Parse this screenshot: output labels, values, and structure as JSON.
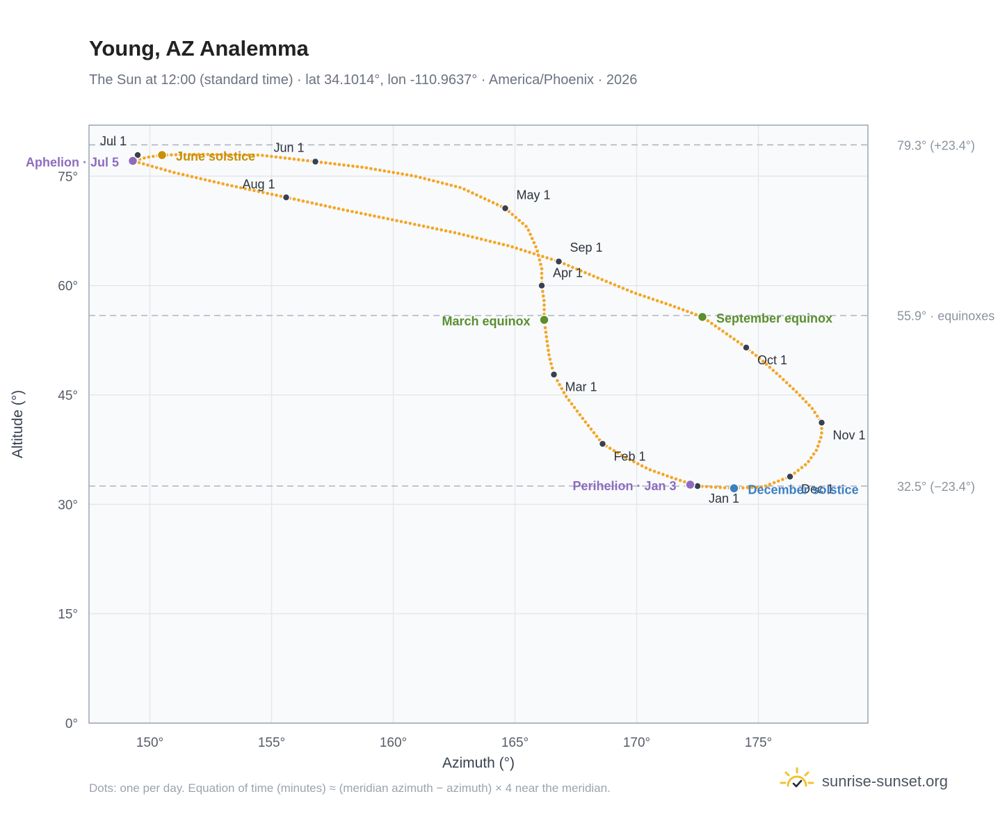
{
  "title": "Young, AZ Analemma",
  "subtitle": "The Sun at 12:00 (standard time) · lat 34.1014°, lon -110.9637° · America/Phoenix · 2026",
  "footnote": "Dots: one per day. Equation of time (minutes) ≈ (meridian azimuth − azimuth) × 4 near the meridian.",
  "brand": "sunrise-sunset.org",
  "colors": {
    "curve": "#f5a623",
    "month_marker": "#374151",
    "solstice_june": "#c8900a",
    "solstice_december": "#3b7fc4",
    "equinox": "#5a8f2e",
    "apsis": "#8e6bbf",
    "grid": "#e5e7eb",
    "reference_line": "#b8bec6",
    "plot_bg": "#f8fafc",
    "frame": "#9aa5b4",
    "brand_sun": "#f2c230"
  },
  "chart_data": {
    "type": "scatter",
    "title": "Young, AZ Analemma",
    "xlabel": "Azimuth (°)",
    "ylabel": "Altitude (°)",
    "xlim": [
      147.5,
      179.5
    ],
    "ylim": [
      0,
      82
    ],
    "x_ticks": [
      150,
      155,
      160,
      165,
      170,
      175
    ],
    "x_tick_labels": [
      "150°",
      "155°",
      "160°",
      "165°",
      "170°",
      "175°"
    ],
    "y_ticks": [
      0,
      15,
      30,
      45,
      60,
      75
    ],
    "y_tick_labels": [
      "0°",
      "15°",
      "30°",
      "45°",
      "60°",
      "75°"
    ],
    "grid": true,
    "reference_lines": [
      {
        "altitude": 79.3,
        "label": "79.3° (+23.4°)"
      },
      {
        "altitude": 55.9,
        "label": "55.9° · equinoxes"
      },
      {
        "altitude": 32.5,
        "label": "32.5° (−23.4°)"
      }
    ],
    "path": [
      [
        172.5,
        32.5
      ],
      [
        174.0,
        32.2
      ],
      [
        175.2,
        32.4
      ],
      [
        176.3,
        33.8
      ],
      [
        177.0,
        35.6
      ],
      [
        177.4,
        37.5
      ],
      [
        177.6,
        39.5
      ],
      [
        177.6,
        41.2
      ],
      [
        177.2,
        43.2
      ],
      [
        176.6,
        45.3
      ],
      [
        175.9,
        47.5
      ],
      [
        175.2,
        49.6
      ],
      [
        174.5,
        51.5
      ],
      [
        173.6,
        53.6
      ],
      [
        172.7,
        55.7
      ],
      [
        171.4,
        57.3
      ],
      [
        169.9,
        59.0
      ],
      [
        168.3,
        61.2
      ],
      [
        166.8,
        63.3
      ],
      [
        164.8,
        65.4
      ],
      [
        162.6,
        67.2
      ],
      [
        160.3,
        68.8
      ],
      [
        157.8,
        70.5
      ],
      [
        155.6,
        72.1
      ],
      [
        153.2,
        73.8
      ],
      [
        151.0,
        75.5
      ],
      [
        149.3,
        77.1
      ],
      [
        149.9,
        77.6
      ],
      [
        150.5,
        77.9
      ],
      [
        152.0,
        78.0
      ],
      [
        154.5,
        77.9
      ],
      [
        156.8,
        77.0
      ],
      [
        158.8,
        76.2
      ],
      [
        160.9,
        75.0
      ],
      [
        162.8,
        73.4
      ],
      [
        164.6,
        70.6
      ],
      [
        165.5,
        68.0
      ],
      [
        165.9,
        65.0
      ],
      [
        166.1,
        62.3
      ],
      [
        166.1,
        60.0
      ],
      [
        166.2,
        57.8
      ],
      [
        166.2,
        55.3
      ],
      [
        166.3,
        52.8
      ],
      [
        166.4,
        50.4
      ],
      [
        166.6,
        47.8
      ],
      [
        167.1,
        44.8
      ],
      [
        167.8,
        41.7
      ],
      [
        168.6,
        38.3
      ],
      [
        169.5,
        36.5
      ],
      [
        170.5,
        34.8
      ],
      [
        171.5,
        33.6
      ],
      [
        172.5,
        32.5
      ]
    ],
    "month_markers": [
      {
        "label": "Jan 1",
        "azimuth": 172.5,
        "altitude": 32.5
      },
      {
        "label": "Feb 1",
        "azimuth": 168.6,
        "altitude": 38.3
      },
      {
        "label": "Mar 1",
        "azimuth": 166.6,
        "altitude": 47.8
      },
      {
        "label": "Apr 1",
        "azimuth": 166.1,
        "altitude": 60.0
      },
      {
        "label": "May 1",
        "azimuth": 164.6,
        "altitude": 70.6
      },
      {
        "label": "Jun 1",
        "azimuth": 156.8,
        "altitude": 77.0
      },
      {
        "label": "Jul 1",
        "azimuth": 149.5,
        "altitude": 77.9
      },
      {
        "label": "Aug 1",
        "azimuth": 155.6,
        "altitude": 72.1
      },
      {
        "label": "Sep 1",
        "azimuth": 166.8,
        "altitude": 63.3
      },
      {
        "label": "Oct 1",
        "azimuth": 174.5,
        "altitude": 51.5
      },
      {
        "label": "Nov 1",
        "azimuth": 177.6,
        "altitude": 41.2
      },
      {
        "label": "Dec 1",
        "azimuth": 176.3,
        "altitude": 33.8
      }
    ],
    "events": [
      {
        "label": "June solstice",
        "azimuth": 150.5,
        "altitude": 77.9,
        "kind": "solstice_june"
      },
      {
        "label": "December solstice",
        "azimuth": 174.0,
        "altitude": 32.2,
        "kind": "solstice_december"
      },
      {
        "label": "March equinox",
        "azimuth": 166.2,
        "altitude": 55.3,
        "kind": "equinox"
      },
      {
        "label": "September equinox",
        "azimuth": 172.7,
        "altitude": 55.7,
        "kind": "equinox"
      },
      {
        "label": "Aphelion · Jul 5",
        "azimuth": 149.3,
        "altitude": 77.1,
        "kind": "apsis"
      },
      {
        "label": "Perihelion · Jan 3",
        "azimuth": 172.2,
        "altitude": 32.7,
        "kind": "apsis"
      }
    ]
  }
}
